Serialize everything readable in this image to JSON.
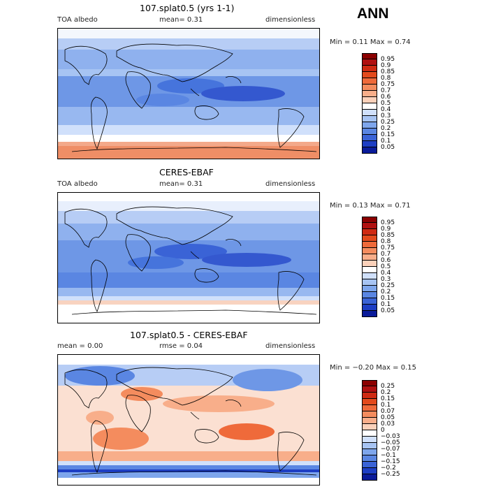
{
  "season": "ANN",
  "panels": [
    {
      "title": "107.splat0.5 (yrs 1-1)",
      "left": "TOA albedo",
      "mid": "mean=   0.31",
      "right": "dimensionless",
      "minmax": "Min =   0.11 Max =   0.74",
      "kind": "abs",
      "colorbar": {
        "labels": [
          "0.95",
          "0.9",
          "0.85",
          "0.8",
          "0.75",
          "0.7",
          "0.6",
          "0.5",
          "0.4",
          "0.3",
          "0.25",
          "0.2",
          "0.15",
          "0.1",
          "0.05"
        ],
        "colors": [
          "#8b0000",
          "#b01010",
          "#cf2a12",
          "#e34a1c",
          "#ef6a3a",
          "#f48c5e",
          "#f8ae8a",
          "#fbd1ba",
          "#ffffff",
          "#d0e0fb",
          "#a7c4f3",
          "#7ea6ec",
          "#5a86e2",
          "#3a63d6",
          "#1d3ec4",
          "#0a1b9a"
        ]
      }
    },
    {
      "title": "CERES-EBAF",
      "left": "TOA albedo",
      "mid": "mean=   0.31",
      "right": "dimensionless",
      "minmax": "Min =   0.13 Max =   0.71",
      "kind": "abs",
      "colorbar": {
        "labels": [
          "0.95",
          "0.9",
          "0.85",
          "0.8",
          "0.75",
          "0.7",
          "0.6",
          "0.5",
          "0.4",
          "0.3",
          "0.25",
          "0.2",
          "0.15",
          "0.1",
          "0.05"
        ],
        "colors": [
          "#8b0000",
          "#b01010",
          "#cf2a12",
          "#e34a1c",
          "#ef6a3a",
          "#f48c5e",
          "#f8ae8a",
          "#fbd1ba",
          "#ffffff",
          "#d0e0fb",
          "#a7c4f3",
          "#7ea6ec",
          "#5a86e2",
          "#3a63d6",
          "#1d3ec4",
          "#0a1b9a"
        ]
      }
    },
    {
      "title": "107.splat0.5 - CERES-EBAF",
      "left": "mean =   0.00",
      "mid": "rmse =   0.04",
      "right": "dimensionless",
      "minmax": "Min = −0.20 Max =   0.15",
      "kind": "diff",
      "colorbar": {
        "labels": [
          "0.25",
          "0.2",
          "0.15",
          "0.1",
          "0.07",
          "0.05",
          "0.03",
          "0",
          "−0.03",
          "−0.05",
          "−0.07",
          "−0.1",
          "−0.15",
          "−0.2",
          "−0.25"
        ],
        "colors": [
          "#8b0000",
          "#b01010",
          "#cf2a12",
          "#e34a1c",
          "#ef6a3a",
          "#f48c5e",
          "#f8ae8a",
          "#fbd1ba",
          "#ffffff",
          "#d0e0fb",
          "#a7c4f3",
          "#7ea6ec",
          "#5a86e2",
          "#3a63d6",
          "#1d3ec4",
          "#0a1b9a"
        ]
      }
    }
  ]
}
